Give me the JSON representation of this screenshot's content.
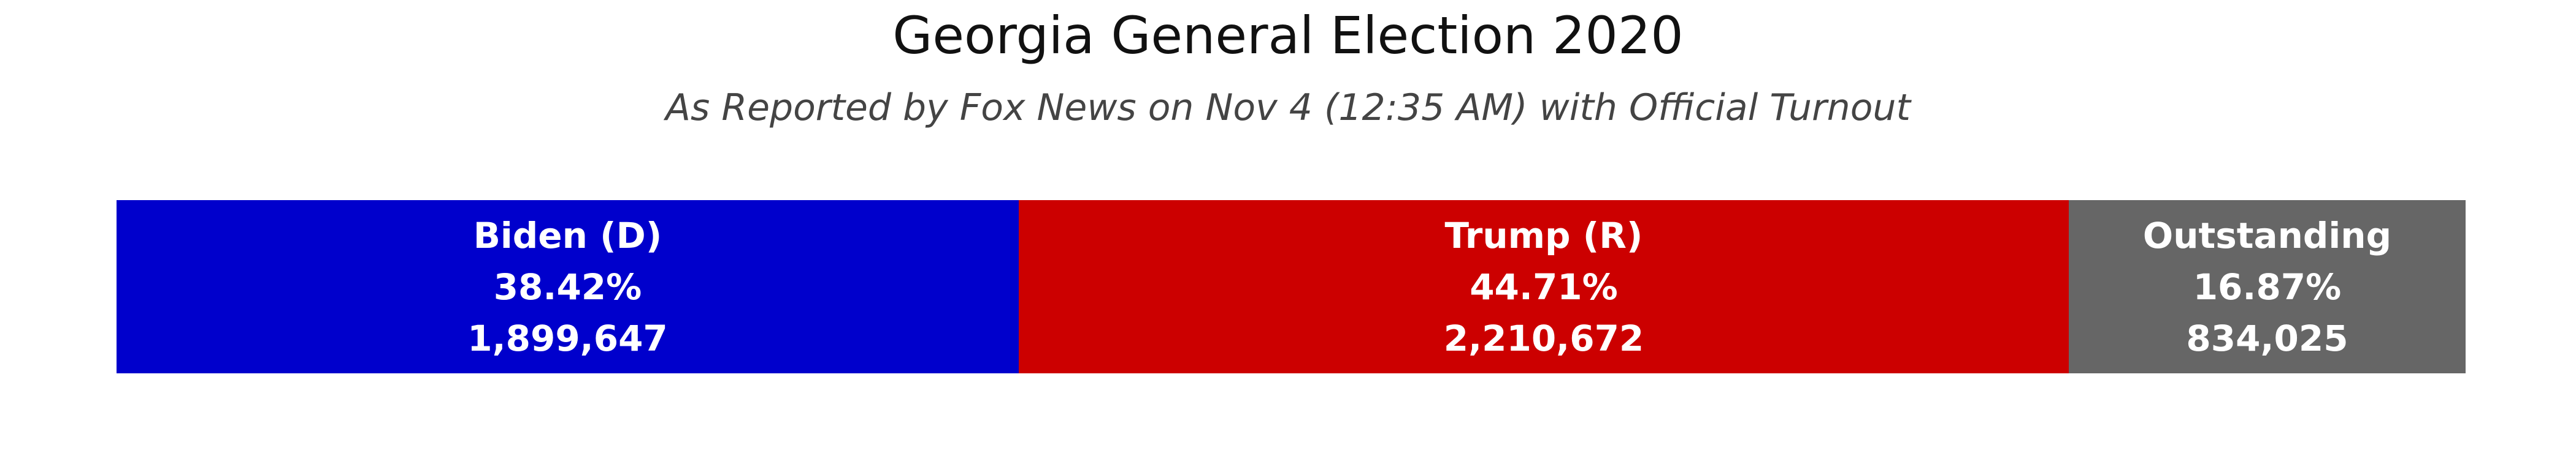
{
  "chart_data": {
    "type": "bar",
    "orientation": "horizontal-stacked",
    "title": "Georgia General Election 2020",
    "subtitle": "As Reported by Fox News on Nov 4 (12:35 AM) with Official Turnout",
    "xlabel": "",
    "ylabel": "",
    "grid": false,
    "legend": "none",
    "segments": [
      {
        "name": "Biden (D)",
        "percent": 38.42,
        "percent_label": "38.42%",
        "votes": 1899647,
        "votes_label": "1,899,647",
        "color": "#0000cc"
      },
      {
        "name": "Trump (R)",
        "percent": 44.71,
        "percent_label": "44.71%",
        "votes": 2210672,
        "votes_label": "2,210,672",
        "color": "#cc0000"
      },
      {
        "name": "Outstanding",
        "percent": 16.87,
        "percent_label": "16.87%",
        "votes": 834025,
        "votes_label": "834,025",
        "color": "#666666"
      }
    ]
  }
}
